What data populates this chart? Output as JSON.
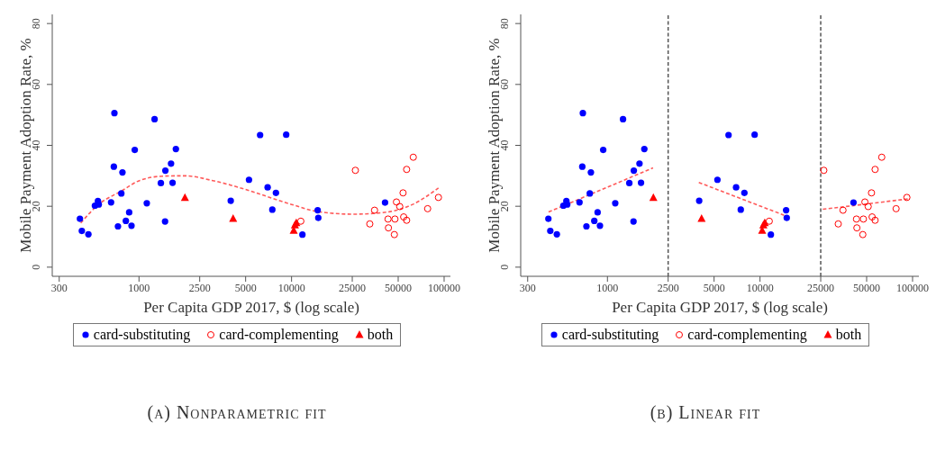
{
  "chart_data": [
    {
      "type": "scatter",
      "title": "(a) Nonparametric fit",
      "xlabel": "Per Capita GDP 2017, $ (log scale)",
      "ylabel": "Mobile Payment Adoption Rate, %",
      "log": "x",
      "xlim": [
        270,
        110000
      ],
      "xticks": [
        300,
        1000,
        2500,
        5000,
        10000,
        25000,
        50000,
        100000
      ],
      "ylim": [
        -3,
        83
      ],
      "yticks": [
        0,
        20,
        40,
        60,
        80
      ],
      "legend": "bottom",
      "series": [
        {
          "name": "card-substituting",
          "color": "#0000ff",
          "marker": "circle",
          "x": [
            410,
            422,
            466,
            514,
            538,
            545,
            656,
            690,
            684,
            728,
            766,
            779,
            820,
            862,
            893,
            938,
            1125,
            1265,
            1391,
            1482,
            1489,
            1622,
            1660,
            1745,
            3993,
            5260,
            6220,
            6970,
            7480,
            7900,
            9220,
            11780,
            14830,
            14970,
            41000
          ],
          "values": [
            15.9,
            11.9,
            10.8,
            20.2,
            21.7,
            20.6,
            21.3,
            50.6,
            33.0,
            13.4,
            24.2,
            31.1,
            15.2,
            18.0,
            13.6,
            38.5,
            21.0,
            48.6,
            27.6,
            15.0,
            31.7,
            34.0,
            27.7,
            38.8,
            21.8,
            28.7,
            43.4,
            26.2,
            18.9,
            24.4,
            43.5,
            10.7,
            18.7,
            16.2,
            21.2
          ]
        },
        {
          "name": "card-complementing",
          "color": "#ff0000",
          "marker": "circle-open",
          "x": [
            11500,
            26200,
            32570,
            35000,
            42900,
            43150,
            47200,
            47600,
            48700,
            51200,
            53800,
            54300,
            56800,
            56800,
            62800,
            78000,
            91800
          ],
          "values": [
            15.1,
            31.8,
            14.2,
            18.7,
            15.8,
            12.9,
            10.7,
            15.8,
            21.4,
            19.9,
            24.4,
            16.5,
            32.1,
            15.4,
            36.1,
            19.2,
            22.9
          ]
        },
        {
          "name": "both",
          "color": "#ff0000",
          "marker": "triangle",
          "x": [
            2000,
            4140,
            10330,
            10520,
            10740
          ],
          "values": [
            22.8,
            15.9,
            12.0,
            13.8,
            14.5
          ]
        },
        {
          "type": "line",
          "color": "#ff5a5a",
          "marker": "none",
          "line_style": "dashed",
          "x": [
            415,
            538,
            773,
            1014,
            1456,
            2000,
            3000,
            4930,
            7410,
            10000,
            14630,
            25200,
            39500,
            62200,
            91800
          ],
          "values": [
            14.5,
            20.4,
            25.1,
            28.5,
            29.9,
            30.0,
            28.5,
            25.6,
            22.7,
            20.6,
            18.3,
            17.4,
            17.9,
            20.6,
            26.0
          ]
        }
      ]
    },
    {
      "type": "scatter",
      "title": "(b) Linear fit",
      "xlabel": "Per Capita GDP 2017, $ (log scale)",
      "ylabel": "Mobile Payment Adoption Rate, %",
      "log": "x",
      "xlim": [
        270,
        110000
      ],
      "xticks": [
        300,
        1000,
        2500,
        5000,
        10000,
        25000,
        50000,
        100000
      ],
      "ylim": [
        -3,
        83
      ],
      "yticks": [
        0,
        20,
        40,
        60,
        80
      ],
      "legend": "bottom",
      "ref_lines": [
        {
          "axis": "x",
          "value": 2500,
          "color": "#555555",
          "line_style": "dashed"
        },
        {
          "axis": "x",
          "value": 25000,
          "color": "#555555",
          "line_style": "dashed"
        }
      ],
      "series": [
        {
          "name": "card-substituting",
          "color": "#0000ff",
          "marker": "circle",
          "x": [
            410,
            422,
            466,
            514,
            538,
            545,
            656,
            690,
            684,
            728,
            766,
            779,
            820,
            862,
            893,
            938,
            1125,
            1265,
            1391,
            1482,
            1489,
            1622,
            1660,
            1745,
            3993,
            5260,
            6220,
            6970,
            7480,
            7900,
            9220,
            11780,
            14830,
            14970,
            41000
          ],
          "values": [
            15.9,
            11.9,
            10.8,
            20.2,
            21.7,
            20.6,
            21.3,
            50.6,
            33.0,
            13.4,
            24.2,
            31.1,
            15.2,
            18.0,
            13.6,
            38.5,
            21.0,
            48.6,
            27.6,
            15.0,
            31.7,
            34.0,
            27.7,
            38.8,
            21.8,
            28.7,
            43.4,
            26.2,
            18.9,
            24.4,
            43.5,
            10.7,
            18.7,
            16.2,
            21.2
          ]
        },
        {
          "name": "card-complementing",
          "color": "#ff0000",
          "marker": "circle-open",
          "x": [
            11500,
            26200,
            32570,
            35000,
            42900,
            43150,
            47200,
            47600,
            48700,
            51200,
            53800,
            54300,
            56800,
            56800,
            62800,
            78000,
            91800
          ],
          "values": [
            15.1,
            31.8,
            14.2,
            18.7,
            15.8,
            12.9,
            10.7,
            15.8,
            21.4,
            19.9,
            24.4,
            16.5,
            32.1,
            15.4,
            36.1,
            19.2,
            22.9
          ]
        },
        {
          "name": "both",
          "color": "#ff0000",
          "marker": "triangle",
          "x": [
            2000,
            4140,
            10330,
            10520,
            10740
          ],
          "values": [
            22.8,
            15.9,
            12.0,
            13.8,
            14.5
          ]
        },
        {
          "type": "line",
          "color": "#ff5a5a",
          "marker": "none",
          "line_style": "dashed",
          "x": [
            411,
            1990
          ],
          "values": [
            18.1,
            32.6
          ]
        },
        {
          "type": "line",
          "color": "#ff5a5a",
          "marker": "none",
          "line_style": "dashed",
          "x": [
            3970,
            14500
          ],
          "values": [
            27.8,
            17.0
          ]
        },
        {
          "type": "line",
          "color": "#ff5a5a",
          "marker": "none",
          "line_style": "dashed",
          "x": [
            25800,
            93000
          ],
          "values": [
            19.0,
            22.4
          ]
        }
      ]
    }
  ]
}
